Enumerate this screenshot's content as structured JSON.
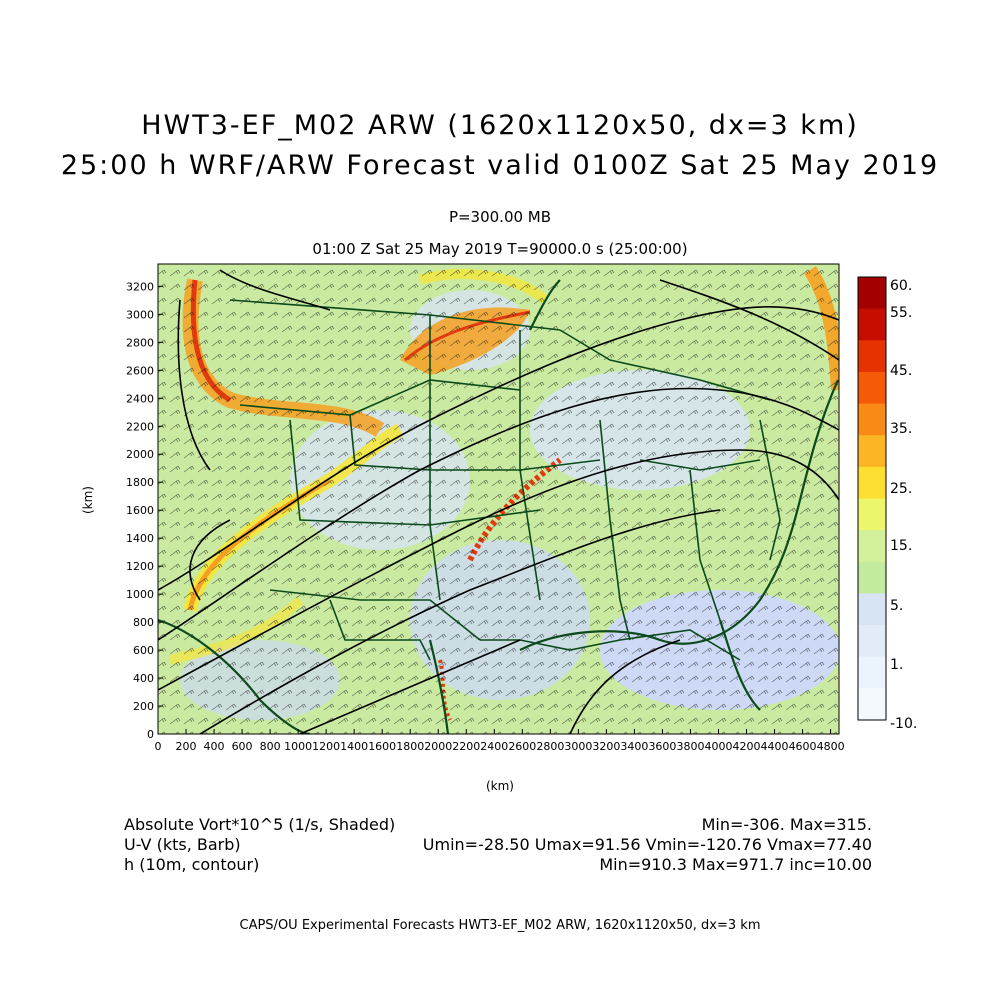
{
  "header": {
    "title_line1": "HWT3-EF_M02 ARW (1620x1120x50, dx=3 km)",
    "title_line2": "25:00 h WRF/ARW Forecast valid 0100Z Sat 25 May 2019",
    "level": "P=300.00 MB",
    "time_line": "01:00 Z Sat 25 May 2019    T=90000.0 s (25:00:00)"
  },
  "map": {
    "x_axis_label": "(km)",
    "y_axis_label": "(km)",
    "x_ticks": [
      "0",
      "200",
      "400",
      "600",
      "800",
      "1000",
      "1200",
      "1400",
      "1600",
      "1800",
      "2000",
      "2200",
      "2400",
      "2600",
      "2800",
      "3000",
      "3200",
      "3400",
      "3600",
      "3800",
      "4000",
      "4200",
      "4400",
      "4600",
      "4800"
    ],
    "y_ticks": [
      "0",
      "200",
      "400",
      "600",
      "800",
      "1000",
      "1200",
      "1400",
      "1600",
      "1800",
      "2000",
      "2200",
      "2400",
      "2600",
      "2800",
      "3000",
      "3200"
    ],
    "x_range_km": [
      0,
      4860
    ],
    "y_range_km": [
      0,
      3360
    ],
    "colors": {
      "vort_background": "#c9eaa0",
      "land_green": "#b5e07a",
      "low_vort": "#cdd9f5",
      "high_vort_yellow": "#f4e63a",
      "high_vort_orange": "#f6a020",
      "high_vort_red": "#e03a10",
      "borders": "#0b4a1a",
      "contours": "#000000"
    }
  },
  "colorbar": {
    "labels": [
      "60.",
      "55.",
      "45.",
      "35.",
      "25.",
      "15.",
      "5.",
      "1.",
      "-10."
    ],
    "colors": [
      "#a30000",
      "#c60e00",
      "#e43300",
      "#f45a08",
      "#f88a15",
      "#fbb525",
      "#fddf33",
      "#ecf66a",
      "#d3f09a",
      "#c3eba0",
      "#d7e4f4",
      "#e2ecf8",
      "#ecf4fb",
      "#f4f9fd"
    ]
  },
  "fields": {
    "shaded_name": "Absolute Vort*10^5 (1/s, Shaded)",
    "shaded_stats": "Min=-306.  Max=315.",
    "barb_name": "U-V (kts, Barb)",
    "barb_stats": "Umin=-28.50 Umax=91.56 Vmin=-120.76 Vmax=77.40",
    "contour_name": "h (10m, contour)",
    "contour_stats": "Min=910.3 Max=971.7 inc=10.00"
  },
  "footer": {
    "credit": "CAPS/OU Experimental Forecasts  HWT3-EF_M02 ARW, 1620x1120x50, dx=3 km"
  }
}
